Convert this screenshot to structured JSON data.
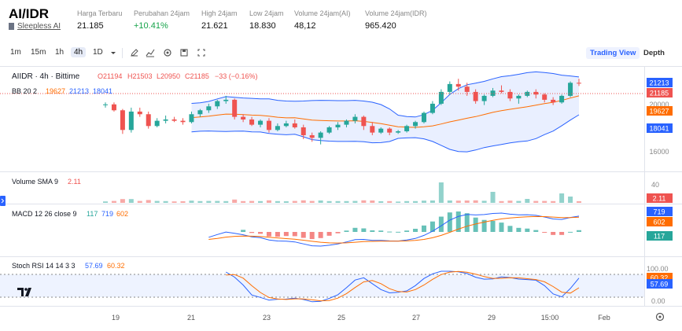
{
  "header": {
    "pair": "AI/IDR",
    "project": "Sleepless AI",
    "stats": [
      {
        "label": "Harga Terbaru",
        "value": "21.185",
        "up": false
      },
      {
        "label": "Perubahan 24jam",
        "value": "+10.41%",
        "up": true
      },
      {
        "label": "High 24jam",
        "value": "21.621",
        "up": false
      },
      {
        "label": "Low 24jam",
        "value": "18.830",
        "up": false
      },
      {
        "label": "Volume 24jam(AI)",
        "value": "48,12",
        "up": false
      },
      {
        "label": "Volume 24jam(IDR)",
        "value": "965.420",
        "up": false
      }
    ]
  },
  "toolbar": {
    "intervals": [
      "1m",
      "15m",
      "1h",
      "4h",
      "1D"
    ],
    "active_interval": "4h",
    "icons": [
      "chevron-down-icon",
      "pencil-icon",
      "indicator-chart-icon",
      "settings-icon",
      "save-icon",
      "fullscreen-icon"
    ],
    "views": [
      "Trading View",
      "Depth"
    ],
    "active_view": "Trading View"
  },
  "chart": {
    "symbol_line": "AIIDR · 4h · Bittime",
    "ohlc": {
      "open": "O21194",
      "high": "H21503",
      "low": "L20950",
      "close": "C21185",
      "change": "−33 (−0.16%)"
    },
    "bb_label": "BB 20 2",
    "bb_values": {
      "basis": "19627",
      "upper": "21213",
      "lower": "18041"
    },
    "price_badges": {
      "upper": "21213",
      "last": "21185",
      "basis": "19627",
      "lower": "18041"
    },
    "price_ticks": [
      "20000",
      "16000"
    ],
    "volume_label": "Volume SMA 9",
    "volume_value": "2.11",
    "volume_ticks": {
      "top": "40",
      "badge": "2.11"
    },
    "macd_label": "MACD 12 26 close 9",
    "macd_values": {
      "hist": "117",
      "macd": "719",
      "signal": "602"
    },
    "macd_badges": {
      "macd": "719",
      "signal": "602",
      "hist": "117"
    },
    "stoch_label": "Stoch RSI 14 14 3 3",
    "stoch_values": {
      "k": "57.69",
      "d": "60.32"
    },
    "stoch_badges": {
      "top": "100.00",
      "d": "60.32",
      "k": "57.69",
      "bottom": "0.00"
    },
    "time_labels": [
      "19",
      "21",
      "23",
      "25",
      "27",
      "29",
      "15:00",
      "Feb"
    ],
    "colors": {
      "up": "#26a69a",
      "down": "#ef5350",
      "bb_upper": "#2962ff",
      "bb_basis": "#ff6d00",
      "macd": "#2962ff",
      "signal": "#ff6d00",
      "stoch_k": "#2962ff",
      "stoch_d": "#ff6d00"
    }
  },
  "chart_data": {
    "type": "candlestick",
    "symbol": "AIIDR",
    "interval": "4h",
    "x_labels": [
      "19",
      "21",
      "23",
      "25",
      "27",
      "29",
      "15:00",
      "Feb"
    ],
    "candles": [
      [
        19500,
        19700,
        19300,
        19550
      ],
      [
        19550,
        19700,
        19000,
        19100
      ],
      [
        19100,
        19200,
        17300,
        17600
      ],
      [
        17600,
        19300,
        17400,
        19000
      ],
      [
        19000,
        19300,
        18600,
        18800
      ],
      [
        18800,
        19000,
        17700,
        17900
      ],
      [
        17900,
        18500,
        17800,
        18300
      ],
      [
        18300,
        18700,
        18100,
        18400
      ],
      [
        18400,
        18600,
        18200,
        18300
      ],
      [
        18300,
        18500,
        18000,
        18200
      ],
      [
        18200,
        19000,
        18100,
        18800
      ],
      [
        18800,
        19200,
        18600,
        19100
      ],
      [
        19100,
        19600,
        18900,
        19400
      ],
      [
        19400,
        19900,
        19200,
        19800
      ],
      [
        19800,
        20200,
        19600,
        19900
      ],
      [
        19900,
        20000,
        18400,
        18600
      ],
      [
        18600,
        18800,
        18200,
        18400
      ],
      [
        18400,
        18600,
        17900,
        18000
      ],
      [
        18000,
        18400,
        17800,
        18300
      ],
      [
        18300,
        18500,
        17400,
        17600
      ],
      [
        17600,
        18100,
        17500,
        17900
      ],
      [
        17900,
        18300,
        17800,
        18100
      ],
      [
        18100,
        18400,
        17700,
        17800
      ],
      [
        17800,
        18000,
        16900,
        17200
      ],
      [
        17200,
        17400,
        16700,
        17000
      ],
      [
        17000,
        17500,
        16500,
        17400
      ],
      [
        17400,
        17900,
        17300,
        17800
      ],
      [
        17800,
        18200,
        17600,
        18000
      ],
      [
        18000,
        18400,
        17800,
        18300
      ],
      [
        18300,
        18800,
        18100,
        18600
      ],
      [
        18600,
        18700,
        17600,
        17900
      ],
      [
        17900,
        18200,
        17200,
        17400
      ],
      [
        17400,
        17800,
        17300,
        17700
      ],
      [
        17700,
        17800,
        17200,
        17400
      ],
      [
        17400,
        17600,
        17300,
        17500
      ],
      [
        17500,
        18000,
        17400,
        17900
      ],
      [
        17900,
        18300,
        17700,
        18200
      ],
      [
        18200,
        19000,
        18100,
        18900
      ],
      [
        18900,
        19800,
        18800,
        19600
      ],
      [
        19600,
        20700,
        19500,
        20500
      ],
      [
        20500,
        21300,
        20300,
        21100
      ],
      [
        21100,
        21500,
        20600,
        20900
      ],
      [
        20900,
        21200,
        20200,
        20500
      ],
      [
        20500,
        20700,
        19600,
        19800
      ],
      [
        19800,
        20300,
        19500,
        20200
      ],
      [
        20200,
        20800,
        20100,
        20600
      ],
      [
        20600,
        21000,
        20400,
        20500
      ],
      [
        20500,
        20700,
        19800,
        20000
      ],
      [
        20000,
        20300,
        19600,
        20200
      ],
      [
        20200,
        20600,
        20100,
        20500
      ],
      [
        20500,
        20700,
        20000,
        20300
      ],
      [
        20300,
        20400,
        19700,
        19900
      ],
      [
        19900,
        20100,
        19500,
        19700
      ],
      [
        19700,
        20300,
        19600,
        20200
      ],
      [
        20200,
        21300,
        20100,
        21194
      ],
      [
        21194,
        21503,
        20950,
        21185
      ]
    ],
    "indicators": {
      "bb": {
        "period": 20,
        "mult": 2,
        "basis": 19627,
        "upper": 21213,
        "lower": 18041
      },
      "volume_sma": {
        "period": 9,
        "value": 2.11
      },
      "macd": {
        "fast": 12,
        "slow": 26,
        "signal": 9,
        "hist": 117,
        "macd": 719,
        "signal_value": 602
      },
      "stoch_rsi": {
        "k": 57.69,
        "d": 60.32
      }
    }
  }
}
